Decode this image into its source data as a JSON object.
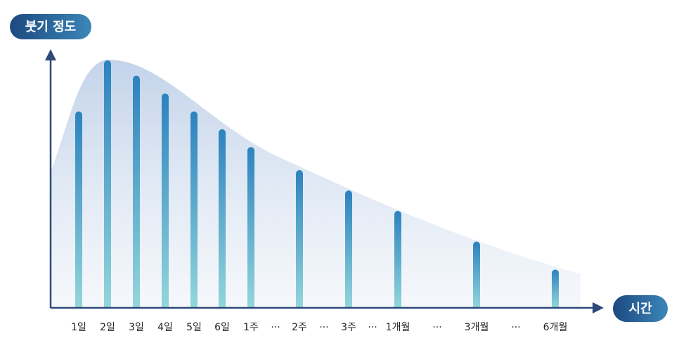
{
  "chart_data": {
    "type": "bar",
    "y_label": "붓기 정도",
    "x_label": "시간",
    "categories": [
      "1일",
      "2일",
      "3일",
      "4일",
      "5일",
      "6일",
      "1주",
      "···",
      "2주",
      "···",
      "3주",
      "···",
      "1개월",
      "···",
      "3개월",
      "···",
      "6개월"
    ],
    "values": [
      77,
      97,
      91,
      84,
      77,
      70,
      63,
      null,
      54,
      null,
      46,
      null,
      38,
      null,
      26,
      null,
      15
    ],
    "ylim": [
      0,
      100
    ]
  }
}
